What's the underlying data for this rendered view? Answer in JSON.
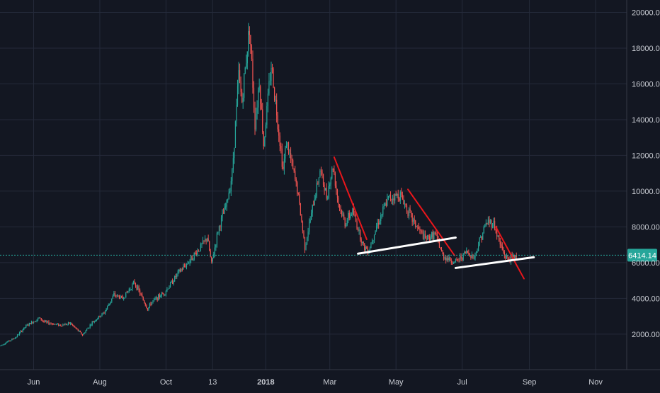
{
  "colors": {
    "background": "#131722",
    "grid": "#242a3a",
    "axis_text": "#c9ccd3",
    "up": "#26a69a",
    "down": "#ef5350",
    "price_badge": "#26a69a",
    "trend_red": "#e8161b",
    "trend_white": "#ffffff"
  },
  "chart_data": {
    "type": "candlestick",
    "x_tick_labels": [
      "Jun",
      "Aug",
      "Oct",
      "13",
      "2018",
      "Mar",
      "May",
      "Jul",
      "Sep",
      "Nov"
    ],
    "y_tick_values": [
      2000,
      4000,
      6000,
      8000,
      10000,
      12000,
      14000,
      16000,
      18000,
      20000
    ],
    "y_tick_labels": [
      "2000.00",
      "4000.00",
      "6000.00",
      "8000.00",
      "10000.00",
      "12000.00",
      "14000.00",
      "16000.00",
      "18000.00",
      "20000.00"
    ],
    "ylim": [
      0,
      21000
    ],
    "grid": true,
    "last_price": 6414.14,
    "last_price_label": "6414.14",
    "series": [
      {
        "price_path": [
          [
            "2017-05-01",
            1350
          ],
          [
            "2017-05-15",
            1800
          ],
          [
            "2017-05-25",
            2450
          ],
          [
            "2017-06-06",
            2900
          ],
          [
            "2017-06-12",
            2650
          ],
          [
            "2017-06-26",
            2500
          ],
          [
            "2017-07-05",
            2600
          ],
          [
            "2017-07-16",
            1950
          ],
          [
            "2017-07-25",
            2650
          ],
          [
            "2017-08-05",
            3200
          ],
          [
            "2017-08-14",
            4200
          ],
          [
            "2017-08-22",
            4000
          ],
          [
            "2017-08-30",
            4650
          ],
          [
            "2017-09-02",
            4900
          ],
          [
            "2017-09-14",
            3400
          ],
          [
            "2017-09-18",
            3800
          ],
          [
            "2017-09-30",
            4350
          ],
          [
            "2017-10-12",
            5400
          ],
          [
            "2017-10-21",
            6000
          ],
          [
            "2017-11-01",
            6800
          ],
          [
            "2017-11-08",
            7400
          ],
          [
            "2017-11-12",
            5900
          ],
          [
            "2017-11-18",
            7800
          ],
          [
            "2017-11-26",
            9300
          ],
          [
            "2017-12-01",
            11000
          ],
          [
            "2017-12-07",
            16500
          ],
          [
            "2017-12-10",
            15000
          ],
          [
            "2017-12-17",
            19300
          ],
          [
            "2017-12-22",
            13800
          ],
          [
            "2017-12-26",
            16200
          ],
          [
            "2017-12-30",
            12600
          ],
          [
            "2018-01-06",
            17100
          ],
          [
            "2018-01-17",
            11200
          ],
          [
            "2018-01-20",
            12800
          ],
          [
            "2018-01-30",
            10100
          ],
          [
            "2018-02-06",
            6900
          ],
          [
            "2018-02-12",
            8700
          ],
          [
            "2018-02-20",
            11200
          ],
          [
            "2018-02-26",
            9700
          ],
          [
            "2018-03-04",
            11400
          ],
          [
            "2018-03-09",
            9300
          ],
          [
            "2018-03-15",
            8200
          ],
          [
            "2018-03-22",
            8900
          ],
          [
            "2018-04-01",
            6900
          ],
          [
            "2018-04-06",
            6700
          ],
          [
            "2018-04-12",
            7900
          ],
          [
            "2018-04-24",
            9600
          ],
          [
            "2018-05-05",
            9800
          ],
          [
            "2018-05-16",
            8400
          ],
          [
            "2018-05-28",
            7300
          ],
          [
            "2018-06-06",
            7600
          ],
          [
            "2018-06-13",
            6400
          ],
          [
            "2018-06-24",
            6000
          ],
          [
            "2018-06-30",
            6300
          ],
          [
            "2018-07-05",
            6600
          ],
          [
            "2018-07-12",
            6300
          ],
          [
            "2018-07-18",
            7400
          ],
          [
            "2018-07-24",
            8300
          ],
          [
            "2018-07-30",
            8200
          ],
          [
            "2018-08-05",
            7000
          ],
          [
            "2018-08-10",
            6300
          ],
          [
            "2018-08-14",
            6200
          ],
          [
            "2018-08-20",
            6414
          ]
        ]
      }
    ],
    "trendlines": [
      {
        "color": "red",
        "from": [
          "2018-03-05",
          11900
        ],
        "to": [
          "2018-04-04",
          7300
        ]
      },
      {
        "color": "red",
        "from": [
          "2018-05-12",
          10100
        ],
        "to": [
          "2018-06-24",
          6400
        ]
      },
      {
        "color": "red",
        "from": [
          "2018-08-01",
          8000
        ],
        "to": [
          "2018-08-27",
          5100
        ]
      },
      {
        "color": "white",
        "from": [
          "2018-03-27",
          6500
        ],
        "to": [
          "2018-06-25",
          7400
        ]
      },
      {
        "color": "white",
        "from": [
          "2018-06-25",
          5700
        ],
        "to": [
          "2018-09-05",
          6300
        ]
      }
    ]
  }
}
